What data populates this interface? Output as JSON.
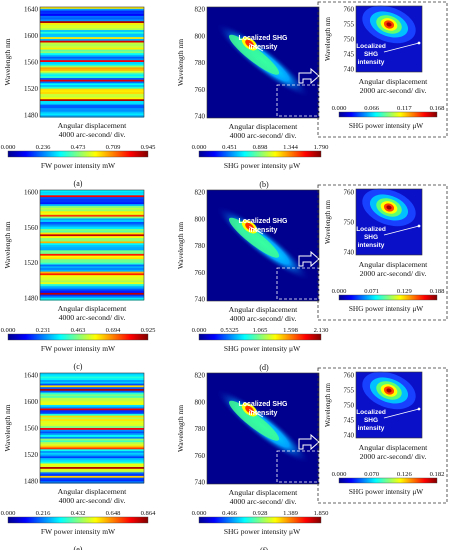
{
  "colormap": [
    "#00008f",
    "#0000ff",
    "#0080ff",
    "#00ffff",
    "#80ff80",
    "#ffff00",
    "#ff8000",
    "#ff0000",
    "#800000"
  ],
  "panels": [
    {
      "fw": {
        "panel_label": "(a)",
        "y_axis_label": "Wavelength nm",
        "y_ticks": [
          "1640",
          "1600",
          "1560",
          "1520",
          "1480"
        ],
        "x_label_line1": "Angular displacement",
        "x_label_line2": "4000 arc-second/ div.",
        "colorbar_ticks": [
          "0.000",
          "0.236",
          "0.473",
          "0.709",
          "0.945"
        ],
        "colorbar_label": "FW power intensity mW"
      },
      "shg": {
        "panel_label": "(b)",
        "y_axis_label": "Wavelength nm",
        "y_ticks": [
          "820",
          "800",
          "780",
          "760",
          "740"
        ],
        "x_label_line1": "Angular displacement",
        "x_label_line2": "4000 arc-second/ div.",
        "colorbar_ticks": [
          "0.000",
          "0.451",
          "0.898",
          "1.344",
          "1.790"
        ],
        "colorbar_label": "SHG power intensity μW",
        "annotation": [
          "Localized SHG",
          "intensity"
        ]
      },
      "inset": {
        "y_axis_label": "Wavelength nm",
        "y_ticks": [
          "760",
          "755",
          "750",
          "745",
          "740"
        ],
        "x_label_line1": "Angular displacement",
        "x_label_line2": "2000 arc-second/ div.",
        "colorbar_ticks": [
          "0.000",
          "0.066",
          "0.117",
          "0.168"
        ],
        "colorbar_label": "SHG power intensity μW",
        "annotation": [
          "Localized",
          "SHG",
          "intensity"
        ]
      }
    },
    {
      "fw": {
        "panel_label": "(c)",
        "y_axis_label": "Wavelength nm",
        "y_ticks": [
          "1600",
          "1560",
          "1520",
          "1480"
        ],
        "x_label_line1": "Angular displacement",
        "x_label_line2": "4000 arc-second/ div.",
        "colorbar_ticks": [
          "0.000",
          "0.231",
          "0.463",
          "0.694",
          "0.925"
        ],
        "colorbar_label": "FW power intensity mW"
      },
      "shg": {
        "panel_label": "(d)",
        "y_axis_label": "Wavelength nm",
        "y_ticks": [
          "820",
          "800",
          "780",
          "760",
          "740"
        ],
        "x_label_line1": "Angular displacement",
        "x_label_line2": "4000 arc-second/ div.",
        "colorbar_ticks": [
          "0.000",
          "0.5325",
          "1.065",
          "1.598",
          "2.130"
        ],
        "colorbar_label": "SHG power intensity μW",
        "annotation": [
          "Localized SHG",
          "intensity"
        ]
      },
      "inset": {
        "y_axis_label": "Wavelength nm",
        "y_ticks": [
          "760",
          "750",
          "740"
        ],
        "x_label_line1": "Angular displacement",
        "x_label_line2": "2000 arc-second/ div.",
        "colorbar_ticks": [
          "0.000",
          "0.071",
          "0.129",
          "0.188"
        ],
        "colorbar_label": "SHG power intensity μW",
        "annotation": [
          "Localized",
          "SHG",
          "intensity"
        ]
      }
    },
    {
      "fw": {
        "panel_label": "(e)",
        "y_axis_label": "Wavelength nm",
        "y_ticks": [
          "1640",
          "1600",
          "1560",
          "1520",
          "1480"
        ],
        "x_label_line1": "Angular displacement",
        "x_label_line2": "4000 arc-second/ div.",
        "colorbar_ticks": [
          "0.000",
          "0.216",
          "0.432",
          "0.648",
          "0.864"
        ],
        "colorbar_label": "FW power intensity mW"
      },
      "shg": {
        "panel_label": "(f)",
        "y_axis_label": "Wavelength nm",
        "y_ticks": [
          "820",
          "800",
          "780",
          "760",
          "740"
        ],
        "x_label_line1": "Angular displacement",
        "x_label_line2": "4000 arc-second/ div.",
        "colorbar_ticks": [
          "0.000",
          "0.466",
          "0.928",
          "1.389",
          "1.850"
        ],
        "colorbar_label": "SHG power intensity μW",
        "annotation": [
          "Localized SHG",
          "intensity"
        ]
      },
      "inset": {
        "y_axis_label": "Wavelength nm",
        "y_ticks": [
          "760",
          "755",
          "750",
          "745",
          "740"
        ],
        "x_label_line1": "Angular displacement",
        "x_label_line2": "2000 arc-second/ div.",
        "colorbar_ticks": [
          "0.000",
          "0.070",
          "0.126",
          "0.182"
        ],
        "colorbar_label": "SHG power intensity μW",
        "annotation": [
          "Localized",
          "SHG",
          "intensity"
        ]
      }
    }
  ],
  "chart_data": [
    {
      "type": "heatmap",
      "panel": "(a)",
      "ylim": [
        1480,
        1640
      ],
      "colorbar_range": [
        0.0,
        0.945
      ],
      "colorbar_label": "FW power intensity mW",
      "xlabel": "Angular displacement 4000 arc-second/ div.",
      "ylabel": "Wavelength nm"
    },
    {
      "type": "heatmap",
      "panel": "(b)",
      "ylim": [
        740,
        820
      ],
      "colorbar_range": [
        0.0,
        1.79
      ],
      "colorbar_label": "SHG power intensity μW",
      "xlabel": "Angular displacement 4000 arc-second/ div.",
      "ylabel": "Wavelength nm",
      "inset": {
        "ylim": [
          740,
          762
        ],
        "colorbar_range": [
          0.0,
          0.168
        ],
        "xlabel": "Angular displacement 2000 arc-second/ div."
      }
    },
    {
      "type": "heatmap",
      "panel": "(c)",
      "ylim": [
        1480,
        1620
      ],
      "colorbar_range": [
        0.0,
        0.925
      ],
      "colorbar_label": "FW power intensity mW",
      "xlabel": "Angular displacement 4000 arc-second/ div.",
      "ylabel": "Wavelength nm"
    },
    {
      "type": "heatmap",
      "panel": "(d)",
      "ylim": [
        740,
        820
      ],
      "colorbar_range": [
        0.0,
        2.13
      ],
      "colorbar_label": "SHG power intensity μW",
      "xlabel": "Angular displacement 4000 arc-second/ div.",
      "ylabel": "Wavelength nm",
      "inset": {
        "ylim": [
          740,
          762
        ],
        "colorbar_range": [
          0.0,
          0.188
        ],
        "xlabel": "Angular displacement 2000 arc-second/ div."
      }
    },
    {
      "type": "heatmap",
      "panel": "(e)",
      "ylim": [
        1480,
        1640
      ],
      "colorbar_range": [
        0.0,
        0.864
      ],
      "colorbar_label": "FW power intensity mW",
      "xlabel": "Angular displacement 4000 arc-second/ div.",
      "ylabel": "Wavelength nm"
    },
    {
      "type": "heatmap",
      "panel": "(f)",
      "ylim": [
        740,
        820
      ],
      "colorbar_range": [
        0.0,
        1.85
      ],
      "colorbar_label": "SHG power intensity μW",
      "xlabel": "Angular displacement 4000 arc-second/ div.",
      "ylabel": "Wavelength nm",
      "inset": {
        "ylim": [
          740,
          762
        ],
        "colorbar_range": [
          0.0,
          0.182
        ],
        "xlabel": "Angular displacement 2000 arc-second/ div."
      }
    }
  ]
}
